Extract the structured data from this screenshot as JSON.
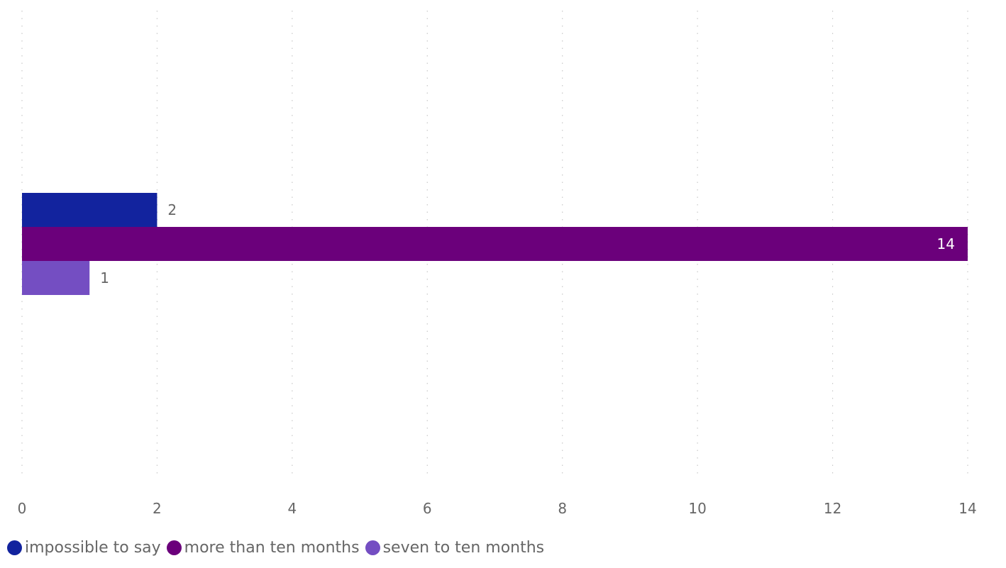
{
  "chart_data": {
    "type": "bar",
    "orientation": "horizontal",
    "categories": [
      ""
    ],
    "series": [
      {
        "name": "impossible to say",
        "values": [
          2
        ],
        "color": "#12239E"
      },
      {
        "name": "more than ten months",
        "values": [
          14
        ],
        "color": "#6B007B"
      },
      {
        "name": "seven to ten months",
        "values": [
          1
        ],
        "color": "#744EC2"
      }
    ],
    "data_labels": [
      "2",
      "14",
      "1"
    ],
    "x_ticks": [
      "0",
      "2",
      "4",
      "6",
      "8",
      "10",
      "12",
      "14"
    ],
    "xlim": [
      0,
      14
    ],
    "grid": "vertical dotted",
    "legend_position": "bottom-left"
  }
}
